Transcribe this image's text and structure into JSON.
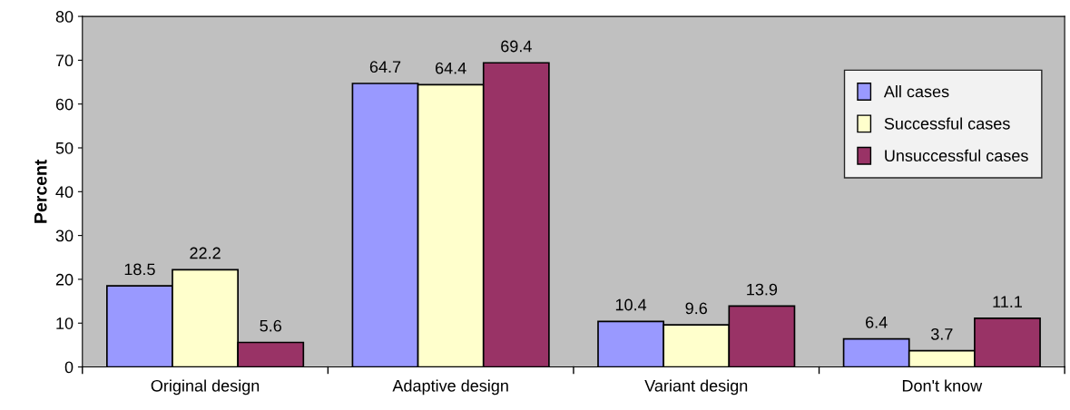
{
  "chart_data": {
    "type": "bar",
    "ylabel": "Percent",
    "categories": [
      "Original design",
      "Adaptive design",
      "Variant design",
      "Don't know"
    ],
    "series": [
      {
        "name": "All cases",
        "color": "#9999ff",
        "values": [
          18.5,
          64.7,
          10.4,
          6.4
        ]
      },
      {
        "name": "Successful cases",
        "color": "#ffffcc",
        "values": [
          22.2,
          64.4,
          9.6,
          3.7
        ]
      },
      {
        "name": "Unsuccessful cases",
        "color": "#993366",
        "values": [
          5.6,
          69.4,
          13.9,
          11.1
        ]
      }
    ],
    "ylim": [
      0,
      80
    ],
    "yticks": [
      0,
      10,
      20,
      30,
      40,
      50,
      60,
      70,
      80
    ],
    "data_labels": true,
    "grid": false,
    "legend": "top right"
  }
}
